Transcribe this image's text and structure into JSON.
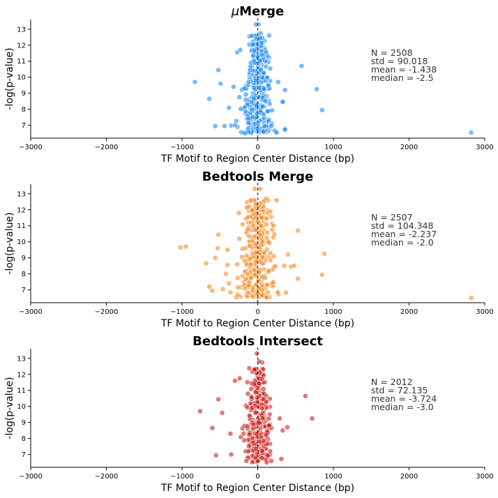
{
  "chart_data": [
    {
      "type": "scatter",
      "title_prefix": "μ",
      "title": "Merge",
      "xlabel": "TF Motif to Region Center Distance (bp)",
      "ylabel": "-log(p-value)",
      "xlim": [
        -3000,
        3000
      ],
      "ylim": [
        6.2,
        13.6
      ],
      "xticks": [
        -3000,
        -2000,
        -1000,
        0,
        1000,
        2000,
        3000
      ],
      "yticks": [
        7,
        8,
        9,
        10,
        11,
        12,
        13
      ],
      "color": "#1f8ef1",
      "stats": [
        "N = 2508",
        "std = 90.018",
        "mean = -1.438",
        "median = -2.5"
      ],
      "outliers": [
        {
          "x": -830,
          "y": 9.7
        },
        {
          "x": -640,
          "y": 8.65
        },
        {
          "x": -560,
          "y": 6.95
        },
        {
          "x": -520,
          "y": 10.45
        },
        {
          "x": -490,
          "y": 9.6
        },
        {
          "x": -440,
          "y": 6.95
        },
        {
          "x": -380,
          "y": 8.1
        },
        {
          "x": -350,
          "y": 6.98
        },
        {
          "x": -300,
          "y": 7.0
        },
        {
          "x": -320,
          "y": 9.4
        },
        {
          "x": -270,
          "y": 11.55
        },
        {
          "x": -230,
          "y": 11.7
        },
        {
          "x": 150,
          "y": 12.6
        },
        {
          "x": 270,
          "y": 9.7
        },
        {
          "x": 330,
          "y": 8.5
        },
        {
          "x": 360,
          "y": 9.2
        },
        {
          "x": 330,
          "y": 8.45
        },
        {
          "x": 580,
          "y": 10.7
        },
        {
          "x": 780,
          "y": 9.25
        },
        {
          "x": 850,
          "y": 7.95
        },
        {
          "x": 2820,
          "y": 6.55
        },
        {
          "x": 10,
          "y": 13.3
        },
        {
          "x": -25,
          "y": 13.3
        },
        {
          "x": 40,
          "y": 12.75
        },
        {
          "x": -120,
          "y": 6.6
        },
        {
          "x": 250,
          "y": 6.55
        }
      ],
      "cluster": {
        "count": 340,
        "spread_bp": 120,
        "y_range": [
          6.5,
          12.6
        ],
        "seed": 11
      }
    },
    {
      "type": "scatter",
      "title_prefix": "",
      "title": "Bedtools Merge",
      "xlabel": "TF Motif to Region Center Distance (bp)",
      "ylabel": "-log(p-value)",
      "xlim": [
        -3000,
        3000
      ],
      "ylim": [
        6.2,
        13.6
      ],
      "xticks": [
        -3000,
        -2000,
        -1000,
        0,
        1000,
        2000,
        3000
      ],
      "yticks": [
        7,
        8,
        9,
        10,
        11,
        12,
        13
      ],
      "color": "#f28c28",
      "stats": [
        "N = 2507",
        "std = 104.348",
        "mean = -2.237",
        "median = -2.0"
      ],
      "outliers": [
        {
          "x": -1020,
          "y": 9.65
        },
        {
          "x": -950,
          "y": 9.7
        },
        {
          "x": -680,
          "y": 8.65
        },
        {
          "x": -640,
          "y": 7.2
        },
        {
          "x": -600,
          "y": 6.95
        },
        {
          "x": -560,
          "y": 9.0
        },
        {
          "x": -530,
          "y": 9.6
        },
        {
          "x": -520,
          "y": 10.45
        },
        {
          "x": -460,
          "y": 7.05
        },
        {
          "x": -420,
          "y": 8.0
        },
        {
          "x": -400,
          "y": 9.5
        },
        {
          "x": -380,
          "y": 7.4
        },
        {
          "x": -250,
          "y": 11.8
        },
        {
          "x": 110,
          "y": 12.7
        },
        {
          "x": 250,
          "y": 12.6
        },
        {
          "x": 350,
          "y": 8.5
        },
        {
          "x": 400,
          "y": 9.2
        },
        {
          "x": 440,
          "y": 8.45
        },
        {
          "x": 480,
          "y": 8.5
        },
        {
          "x": 530,
          "y": 10.7
        },
        {
          "x": 530,
          "y": 7.7
        },
        {
          "x": 850,
          "y": 7.95
        },
        {
          "x": 880,
          "y": 9.25
        },
        {
          "x": 2820,
          "y": 6.5
        },
        {
          "x": -40,
          "y": 13.3
        },
        {
          "x": 30,
          "y": 13.3
        }
      ],
      "cluster": {
        "count": 340,
        "spread_bp": 135,
        "y_range": [
          6.5,
          12.6
        ],
        "seed": 23
      }
    },
    {
      "type": "scatter",
      "title_prefix": "",
      "title": "Bedtools Intersect",
      "xlabel": "TF Motif to Region Center Distance (bp)",
      "ylabel": "-log(p-value)",
      "xlim": [
        -3000,
        3000
      ],
      "ylim": [
        6.2,
        13.6
      ],
      "xticks": [
        -3000,
        -2000,
        -1000,
        0,
        1000,
        2000,
        3000
      ],
      "yticks": [
        7,
        8,
        9,
        10,
        11,
        12,
        13
      ],
      "color": "#cc1f1a",
      "stats": [
        "N = 2012",
        "std = 72.135",
        "mean = -3.724",
        "median = -3.0"
      ],
      "outliers": [
        {
          "x": -760,
          "y": 9.7
        },
        {
          "x": -600,
          "y": 8.65
        },
        {
          "x": -550,
          "y": 6.95
        },
        {
          "x": -520,
          "y": 10.45
        },
        {
          "x": -470,
          "y": 9.6
        },
        {
          "x": -360,
          "y": 8.3
        },
        {
          "x": -350,
          "y": 7.0
        },
        {
          "x": -300,
          "y": 11.6
        },
        {
          "x": -240,
          "y": 11.75
        },
        {
          "x": 60,
          "y": 12.75
        },
        {
          "x": 290,
          "y": 9.25
        },
        {
          "x": 330,
          "y": 8.5
        },
        {
          "x": 390,
          "y": 8.7
        },
        {
          "x": 630,
          "y": 10.65
        },
        {
          "x": 720,
          "y": 9.25
        },
        {
          "x": -10,
          "y": 13.3
        },
        {
          "x": 20,
          "y": 12.8
        },
        {
          "x": -150,
          "y": 6.6
        },
        {
          "x": 180,
          "y": 6.6
        }
      ],
      "cluster": {
        "count": 300,
        "spread_bp": 105,
        "y_range": [
          6.5,
          12.4
        ],
        "seed": 37
      }
    }
  ]
}
